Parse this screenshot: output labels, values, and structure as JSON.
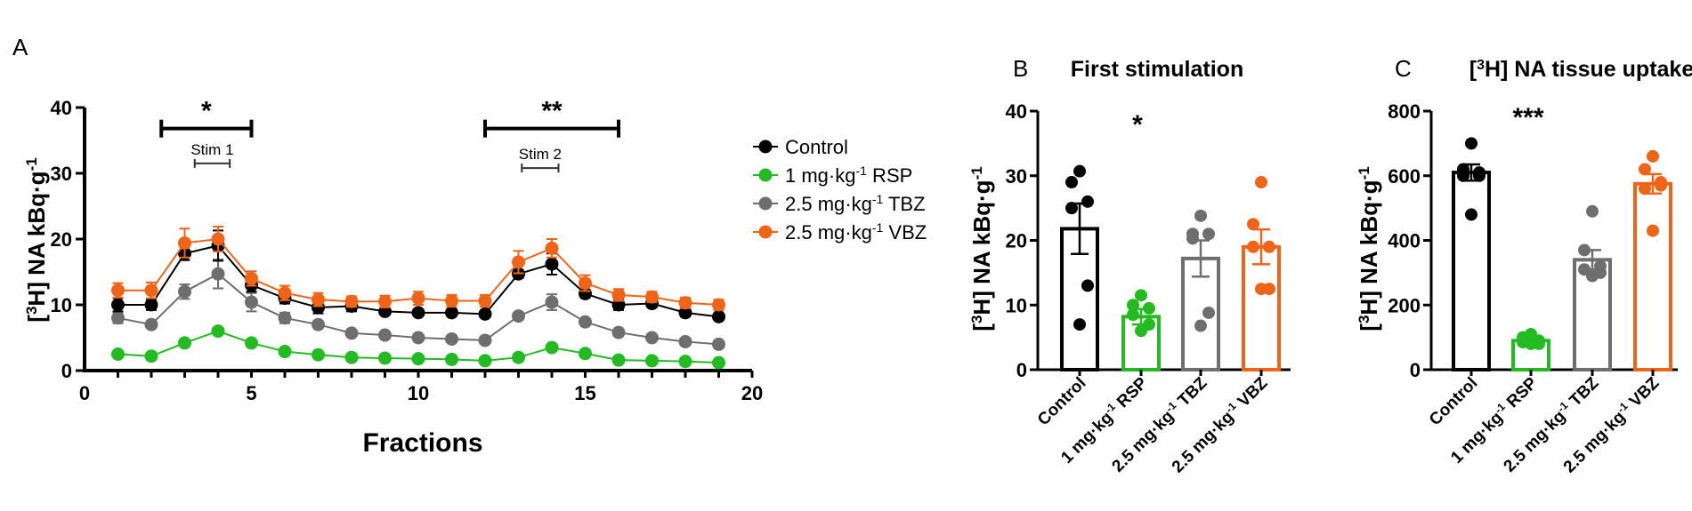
{
  "colors": {
    "Control": "#000000",
    "RSP": "#22bb22",
    "TBZ": "#6e6e6e",
    "VBZ": "#f06418"
  },
  "chart_data": [
    {
      "panel": "A",
      "type": "line",
      "title": "",
      "xlabel": "Fractions",
      "ylabel": "[3H] NA kBq·g-1",
      "xlim": [
        0,
        20
      ],
      "ylim": [
        0,
        40
      ],
      "xticks": [
        0,
        5,
        10,
        15,
        20
      ],
      "yticks": [
        0,
        10,
        20,
        30,
        40
      ],
      "legend_position": "right",
      "x": [
        1,
        2,
        3,
        4,
        5,
        6,
        7,
        8,
        9,
        10,
        11,
        12,
        13,
        14,
        15,
        16,
        17,
        18,
        19
      ],
      "series": [
        {
          "name": "Control",
          "key": "Control",
          "legend": [
            "Control",
            "",
            ""
          ],
          "values": [
            10,
            10,
            17.8,
            19,
            13,
            11,
            9.6,
            9.8,
            9,
            8.8,
            8.8,
            8.6,
            14.7,
            16.2,
            11.7,
            10,
            10.2,
            8.8,
            8.2
          ],
          "errors": [
            1,
            0.8,
            1,
            2.3,
            1,
            0.8,
            0.9,
            0.8,
            0.5,
            0.5,
            0.5,
            0.5,
            0.6,
            1.6,
            0.6,
            0.8,
            0.6,
            0.6,
            0.5
          ]
        },
        {
          "name": "1 mg·kg-1 RSP",
          "key": "RSP",
          "legend": [
            "1 mg·kg",
            "-1",
            " RSP"
          ],
          "values": [
            2.5,
            2.2,
            4.2,
            6,
            4.2,
            2.9,
            2.4,
            2,
            1.9,
            1.8,
            1.7,
            1.5,
            2,
            3.5,
            2.6,
            1.6,
            1.5,
            1.4,
            1.2
          ],
          "errors": [
            0.3,
            0.3,
            0.4,
            0.5,
            0.4,
            0.3,
            0.3,
            0.2,
            0.2,
            0.2,
            0.2,
            0.2,
            0.3,
            0.4,
            0.3,
            0.2,
            0.2,
            0.2,
            0.2
          ]
        },
        {
          "name": "2.5 mg·kg-1 TBZ",
          "key": "TBZ",
          "legend": [
            "2.5 mg·kg",
            "-1",
            " TBZ"
          ],
          "values": [
            8,
            7,
            12,
            14.7,
            10.4,
            8,
            7,
            5.7,
            5.4,
            5,
            4.8,
            4.6,
            8.3,
            10.4,
            7.4,
            5.8,
            5,
            4.4,
            4
          ],
          "errors": [
            0.8,
            0.4,
            1.1,
            2.2,
            1.4,
            0.8,
            0.5,
            0.4,
            0.4,
            0.4,
            0.4,
            0.4,
            0.5,
            1.2,
            0.5,
            0.4,
            0.4,
            0.4,
            0.3
          ]
        },
        {
          "name": "2.5 mg·kg-1 VBZ",
          "key": "VBZ",
          "legend": [
            "2.5 mg·kg",
            "-1",
            " VBZ"
          ],
          "values": [
            12.2,
            12.2,
            19.4,
            20,
            14,
            11.8,
            10.8,
            10.5,
            10.5,
            11,
            10.6,
            10.6,
            16.5,
            18.6,
            13.3,
            11.5,
            11.2,
            10.3,
            10
          ],
          "errors": [
            1.1,
            1.2,
            2.2,
            1.9,
            1.1,
            1.1,
            1,
            0.8,
            0.9,
            1,
            0.9,
            0.9,
            1.7,
            1.4,
            1.2,
            0.9,
            0.8,
            0.8,
            0.8
          ]
        }
      ],
      "annotations": [
        {
          "text": "*",
          "x_range": [
            2.3,
            5.0
          ],
          "y": 36.8
        },
        {
          "text": "**",
          "x_range": [
            12.0,
            16.0
          ],
          "y": 36.8
        },
        {
          "text": "Stim 1",
          "x_range": [
            3.3,
            4.35
          ],
          "y": 31.5
        },
        {
          "text": "Stim 2",
          "x_range": [
            13.1,
            14.2
          ],
          "y": 30.8
        }
      ]
    },
    {
      "panel": "B",
      "type": "bar",
      "title": "First stimulation",
      "ylabel": "[3H] NA kBq·g-1",
      "ylim": [
        0,
        40
      ],
      "yticks": [
        0,
        10,
        20,
        30,
        40
      ],
      "significance": "*",
      "categories": [
        "Control",
        "1 mg·kg-1 RSP",
        "2.5 mg·kg-1 TBZ",
        "2.5 mg·kg-1 VBZ"
      ],
      "keys": [
        "Control",
        "RSP",
        "TBZ",
        "VBZ"
      ],
      "values": [
        21.8,
        8.2,
        17.2,
        19
      ],
      "sem": [
        3.9,
        1.2,
        2.8,
        2.7
      ],
      "points": [
        [
          30.7,
          29,
          26,
          25,
          13,
          7
        ],
        [
          11.5,
          10,
          9.5,
          8.5,
          7,
          6
        ],
        [
          23.8,
          21,
          21,
          20.3,
          8.8,
          6.8
        ],
        [
          29,
          22.5,
          19,
          19,
          12.5,
          12.5
        ]
      ]
    },
    {
      "panel": "C",
      "type": "bar",
      "title": "[3H] NA tissue uptake",
      "ylabel": "[3H] NA kBq·g-1",
      "ylim": [
        0,
        800
      ],
      "yticks": [
        0,
        200,
        400,
        600,
        800
      ],
      "significance": "***",
      "categories": [
        "Control",
        "1 mg·kg-1 RSP",
        "2.5 mg·kg-1 TBZ",
        "2.5 mg·kg-1 VBZ"
      ],
      "keys": [
        "Control",
        "RSP",
        "TBZ",
        "VBZ"
      ],
      "values": [
        610,
        90,
        340,
        575
      ],
      "sem": [
        25,
        8,
        30,
        30
      ],
      "points": [
        [
          700,
          620,
          610,
          600,
          600,
          480
        ],
        [
          110,
          100,
          90,
          85,
          80,
          80
        ],
        [
          490,
          370,
          320,
          310,
          300,
          290
        ],
        [
          660,
          620,
          580,
          560,
          570,
          430
        ]
      ]
    }
  ]
}
